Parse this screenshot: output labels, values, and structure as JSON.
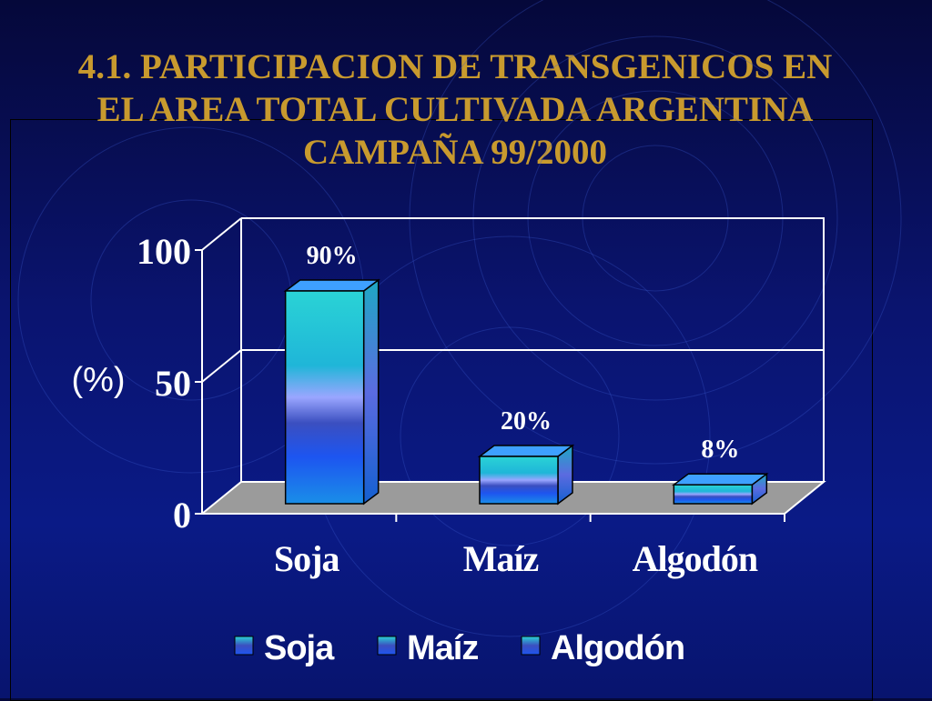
{
  "slide": {
    "title_lines": [
      "4.1. PARTICIPACION DE TRANSGENICOS EN",
      "EL AREA TOTAL CULTIVADA ARGENTINA",
      "CAMPAÑA 99/2000"
    ]
  },
  "colors": {
    "title": "#c89a2e",
    "text": "#ffffff",
    "floor": "#9b9b9b",
    "bar_cyan": "#21c8d0",
    "bar_blue": "#1a5bff",
    "bar_lavender": "#9aa6ff"
  },
  "chart_data": {
    "type": "bar",
    "title": "4.1. PARTICIPACION DE TRANSGENICOS EN EL AREA TOTAL CULTIVADA ARGENTINA CAMPAÑA 99/2000",
    "xlabel": "",
    "ylabel": "(%)",
    "categories": [
      "Soja",
      "Maíz",
      "Algodón"
    ],
    "values": [
      90,
      20,
      8
    ],
    "data_labels": [
      "90%",
      "20%",
      "8%"
    ],
    "ylim": [
      0,
      100
    ],
    "yticks": [
      "0",
      "50",
      "100"
    ],
    "grid": true,
    "legend": {
      "position": "bottom",
      "entries": [
        "Soja",
        "Maíz",
        "Algodón"
      ]
    }
  }
}
